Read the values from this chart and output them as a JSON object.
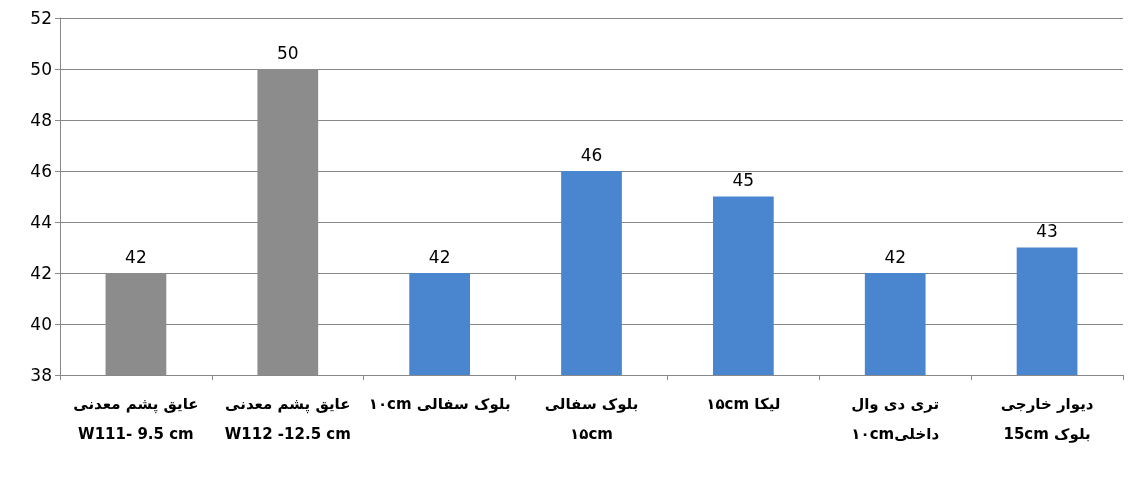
{
  "chart_data": {
    "type": "bar",
    "categories": [
      "عایق پشم معدنی\nW111- 9.5 cm",
      "عایق پشم معدنی\nW112 -12.5 cm",
      "بلوک سفالی ۱۰cm",
      "بلوک سفالی\n۱۵cm",
      "لیکا ۱۵cm",
      "تری دی وال\nداخلی۱۰cm",
      "دیوار خارجی\nبلوک 15cm"
    ],
    "values": [
      42,
      50,
      42,
      46,
      45,
      42,
      43
    ],
    "colors": [
      "#8c8c8c",
      "#8c8c8c",
      "#4a86d0",
      "#4a86d0",
      "#4a86d0",
      "#4a86d0",
      "#4a86d0"
    ],
    "ylim": [
      38,
      52
    ],
    "yticks": [
      38,
      40,
      42,
      44,
      46,
      48,
      50,
      52
    ],
    "grid": "y",
    "data_labels": true
  }
}
